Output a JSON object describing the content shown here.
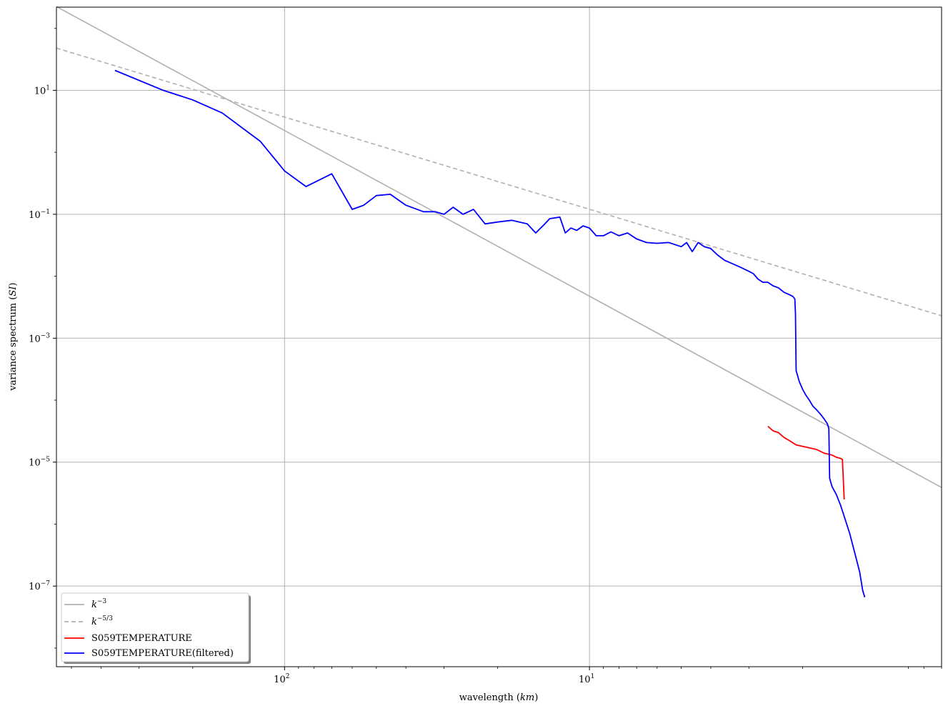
{
  "chart_data": {
    "type": "line",
    "title": "",
    "xlabel": "wavelength",
    "xlabel_unit": "km",
    "ylabel": "variance spectrum",
    "ylabel_unit": "SI",
    "x_scale": "log",
    "y_scale": "log",
    "x_reversed": true,
    "xlim": [
      560,
      0.7
    ],
    "ylim": [
      5e-09,
      220
    ],
    "grid": true,
    "legend_position": "lower-left",
    "x_ticks": [
      {
        "value": 100,
        "base": "10",
        "exp": "2"
      },
      {
        "value": 10,
        "base": "10",
        "exp": "1"
      }
    ],
    "y_ticks": [
      {
        "value": 10,
        "base": "10",
        "exp": "1"
      },
      {
        "value": 0.1,
        "base": "10",
        "exp": "−1"
      },
      {
        "value": 0.001,
        "base": "10",
        "exp": "−3"
      },
      {
        "value": 1e-05,
        "base": "10",
        "exp": "−5"
      },
      {
        "value": 1e-07,
        "base": "10",
        "exp": "−7"
      }
    ],
    "series": [
      {
        "name": "k",
        "name_sup": "−3",
        "color": "#b0b0b0",
        "dash": "",
        "points": [
          [
            560,
            225
          ],
          [
            0.7,
            3.9e-06
          ]
        ]
      },
      {
        "name": "k",
        "name_sup": "−5/3",
        "color": "#b0b0b0",
        "dash": "6,4",
        "points": [
          [
            560,
            48
          ],
          [
            0.7,
            0.0023
          ]
        ]
      },
      {
        "name": "S059TEMPERATURE",
        "color": "#ff0000",
        "dash": "",
        "points": [
          [
            2.6,
            3.8e-05
          ],
          [
            2.5,
            3.2e-05
          ],
          [
            2.4,
            3e-05
          ],
          [
            2.3,
            2.5e-05
          ],
          [
            2.2,
            2.2e-05
          ],
          [
            2.1,
            1.9e-05
          ],
          [
            2.0,
            1.8e-05
          ],
          [
            1.9,
            1.7e-05
          ],
          [
            1.8,
            1.6e-05
          ],
          [
            1.7,
            1.4e-05
          ],
          [
            1.6,
            1.3e-05
          ],
          [
            1.55,
            1.2e-05
          ],
          [
            1.5,
            1.15e-05
          ],
          [
            1.48,
            1.1e-05
          ],
          [
            1.46,
            2.5e-06
          ]
        ]
      },
      {
        "name": "S059TEMPERATURE(filtered)",
        "color": "#0000ff",
        "dash": "",
        "points": [
          [
            360,
            21
          ],
          [
            250,
            10
          ],
          [
            200,
            7
          ],
          [
            160,
            4.3
          ],
          [
            120,
            1.5
          ],
          [
            100,
            0.5
          ],
          [
            85,
            0.28
          ],
          [
            70,
            0.45
          ],
          [
            60,
            0.12
          ],
          [
            55,
            0.14
          ],
          [
            50,
            0.2
          ],
          [
            45,
            0.21
          ],
          [
            40,
            0.14
          ],
          [
            35,
            0.11
          ],
          [
            32,
            0.11
          ],
          [
            30,
            0.1
          ],
          [
            28,
            0.13
          ],
          [
            26,
            0.1
          ],
          [
            24,
            0.12
          ],
          [
            22,
            0.07
          ],
          [
            20,
            0.075
          ],
          [
            18,
            0.08
          ],
          [
            16,
            0.07
          ],
          [
            15,
            0.05
          ],
          [
            14,
            0.07
          ],
          [
            13.5,
            0.085
          ],
          [
            12.5,
            0.09
          ],
          [
            12,
            0.05
          ],
          [
            11.5,
            0.06
          ],
          [
            11,
            0.055
          ],
          [
            10.5,
            0.065
          ],
          [
            10,
            0.06
          ],
          [
            9.5,
            0.045
          ],
          [
            9,
            0.045
          ],
          [
            8.5,
            0.052
          ],
          [
            8,
            0.045
          ],
          [
            7.5,
            0.05
          ],
          [
            7,
            0.04
          ],
          [
            6.5,
            0.035
          ],
          [
            6,
            0.034
          ],
          [
            5.5,
            0.035
          ],
          [
            5,
            0.03
          ],
          [
            4.8,
            0.035
          ],
          [
            4.6,
            0.025
          ],
          [
            4.4,
            0.035
          ],
          [
            4.2,
            0.03
          ],
          [
            4.0,
            0.028
          ],
          [
            3.8,
            0.022
          ],
          [
            3.6,
            0.018
          ],
          [
            3.4,
            0.016
          ],
          [
            3.2,
            0.014
          ],
          [
            3.0,
            0.012
          ],
          [
            2.9,
            0.011
          ],
          [
            2.8,
            0.009
          ],
          [
            2.7,
            0.008
          ],
          [
            2.6,
            0.008
          ],
          [
            2.5,
            0.007
          ],
          [
            2.4,
            0.0065
          ],
          [
            2.3,
            0.0055
          ],
          [
            2.2,
            0.005
          ],
          [
            2.15,
            0.0047
          ],
          [
            2.12,
            0.0043
          ],
          [
            2.11,
            0.0025
          ],
          [
            2.1,
            0.0003
          ],
          [
            2.05,
            0.0002
          ],
          [
            2.0,
            0.00015
          ],
          [
            1.95,
            0.00012
          ],
          [
            1.9,
            0.0001
          ],
          [
            1.85,
            8e-05
          ],
          [
            1.8,
            7e-05
          ],
          [
            1.75,
            6e-05
          ],
          [
            1.7,
            5e-05
          ],
          [
            1.66,
            4.2e-05
          ],
          [
            1.64,
            3.5e-05
          ],
          [
            1.63,
            5.5e-06
          ],
          [
            1.6,
            4e-06
          ],
          [
            1.55,
            3e-06
          ],
          [
            1.5,
            2e-06
          ],
          [
            1.45,
            1.2e-06
          ],
          [
            1.4,
            7e-07
          ],
          [
            1.35,
            3.5e-07
          ],
          [
            1.3,
            1.7e-07
          ],
          [
            1.27,
            8.5e-08
          ],
          [
            1.25,
            6.6e-08
          ]
        ]
      }
    ]
  }
}
